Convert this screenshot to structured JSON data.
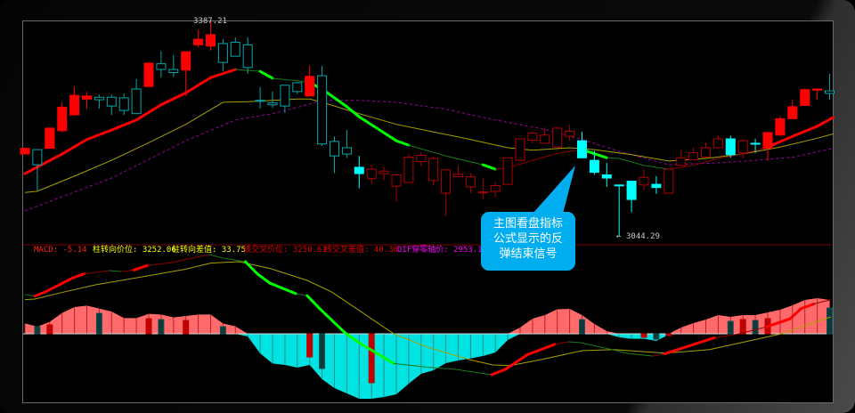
{
  "colors": {
    "up": "#ff0000",
    "up_hollow": "#b00000",
    "down": "#00a8a8",
    "down_filled": "#00ffff",
    "ma_short_up": "#ff0000",
    "ma_short_down": "#00ff00",
    "ma_mid": "#a8a000",
    "ma_long": "#a000a0",
    "hist_pos": "#ff6b6b",
    "hist_neg": "#00e3e3",
    "callout": "#00adef"
  },
  "callout": {
    "lines": [
      "主图看盘指标",
      "公式显示的反",
      "弹结束信号"
    ]
  },
  "macd_header": {
    "macd": "MACD: -5.14",
    "turn_price": "柱转向价位: 3252.06",
    "turn_diff": "柱转向差值: 33.75",
    "cross_price": "线交叉价位: 3250.61",
    "cross_diff": "线交叉差值: 40.30",
    "dif_zero": "DIF穿零轴价: 2953.15"
  },
  "chart_data": [
    {
      "type": "candlestick",
      "annotations": {
        "high_label": "3387.21",
        "low_label": "3044.29",
        "low_arrow": "←"
      },
      "candles_format": [
        "open",
        "high",
        "low",
        "close",
        "style"
      ],
      "candles": [
        [
          3174,
          3185,
          3174,
          3183,
          "up-filled"
        ],
        [
          3181,
          3181,
          3116,
          3157,
          "down-hollow"
        ],
        [
          3183,
          3215,
          3183,
          3215,
          "up-filled"
        ],
        [
          3211,
          3256,
          3208,
          3248,
          "up-filled"
        ],
        [
          3236,
          3281,
          3236,
          3267,
          "up-filled"
        ],
        [
          3261,
          3273,
          3246,
          3266,
          "up-filled"
        ],
        [
          3264,
          3268,
          3246,
          3260,
          "down-hollow"
        ],
        [
          3264,
          3268,
          3236,
          3250,
          "down-hollow"
        ],
        [
          3263,
          3270,
          3236,
          3243,
          "down-hollow"
        ],
        [
          3277,
          3293,
          3238,
          3238,
          "down-hollow"
        ],
        [
          3281,
          3318,
          3281,
          3318,
          "up-filled"
        ],
        [
          3317,
          3337,
          3295,
          3308,
          "down-hollow"
        ],
        [
          3308,
          3331,
          3296,
          3303,
          "down-hollow"
        ],
        [
          3307,
          3336,
          3266,
          3336,
          "up-filled"
        ],
        [
          3347,
          3371,
          3343,
          3356,
          "up-filled"
        ],
        [
          3345,
          3387.21,
          3338,
          3363,
          "up-filled"
        ],
        [
          3349,
          3356,
          3305,
          3319,
          "down-hollow"
        ],
        [
          3351,
          3359,
          3329,
          3329,
          "down-hollow"
        ],
        [
          3347,
          3359,
          3301,
          3311,
          "down-hollow"
        ],
        [
          3259,
          3280,
          3246,
          3259,
          "down-hollow"
        ],
        [
          3255,
          3273,
          3247,
          3252,
          "down-hollow"
        ],
        [
          3283,
          3283,
          3239,
          3250,
          "down-hollow"
        ],
        [
          3287,
          3287,
          3269,
          3273,
          "down-hollow"
        ],
        [
          3266,
          3314,
          3266,
          3297,
          "up-filled"
        ],
        [
          3298,
          3314,
          3187,
          3190,
          "down-hollow"
        ],
        [
          3194,
          3202,
          3144,
          3171,
          "down-hollow"
        ],
        [
          3184,
          3212,
          3168,
          3174,
          "down-hollow"
        ],
        [
          3153,
          3171,
          3120,
          3143,
          "down-filled"
        ],
        [
          3135,
          3157,
          3127,
          3150,
          "up-hollow"
        ],
        [
          3143,
          3153,
          3132,
          3147,
          "up-hollow"
        ],
        [
          3123,
          3141,
          3099,
          3141,
          "up-hollow"
        ],
        [
          3129,
          3174,
          3129,
          3169,
          "up-hollow"
        ],
        [
          3162,
          3177,
          3155,
          3172,
          "up-hollow"
        ],
        [
          3132,
          3170,
          3124,
          3167,
          "up-hollow"
        ],
        [
          3112,
          3149,
          3076,
          3149,
          "up-hollow"
        ],
        [
          3138,
          3156,
          3137,
          3142,
          "up-hollow"
        ],
        [
          3122,
          3144,
          3112,
          3138,
          "up-hollow"
        ],
        [
          3114,
          3135,
          3102,
          3114,
          "up-hollow"
        ],
        [
          3115,
          3130,
          3105,
          3124,
          "up-hollow"
        ],
        [
          3126,
          3168,
          3126,
          3168,
          "up-hollow"
        ],
        [
          3164,
          3198,
          3164,
          3198,
          "up-hollow"
        ],
        [
          3196,
          3210,
          3191,
          3207,
          "up-hollow"
        ],
        [
          3191,
          3216,
          3191,
          3204,
          "up-hollow"
        ],
        [
          3185,
          3217,
          3185,
          3215,
          "up-hollow"
        ],
        [
          3202,
          3220,
          3195,
          3210,
          "up-hollow"
        ],
        [
          3195,
          3209,
          3168,
          3168,
          "down-filled"
        ],
        [
          3164,
          3179,
          3141,
          3145,
          "down-filled"
        ],
        [
          3141,
          3160,
          3122,
          3136,
          "down-filled"
        ],
        [
          3125,
          3125,
          3044.29,
          3125,
          "down-filled"
        ],
        [
          3131,
          3131,
          3082,
          3102,
          "down-filled"
        ],
        [
          3125,
          3150,
          3117,
          3137,
          "up-hollow"
        ],
        [
          3126,
          3139,
          3111,
          3121,
          "down-filled"
        ],
        [
          3112,
          3150,
          3112,
          3150,
          "up-hollow"
        ],
        [
          3156,
          3180,
          3156,
          3168,
          "up-hollow"
        ],
        [
          3165,
          3184,
          3165,
          3176,
          "up-hollow"
        ],
        [
          3169,
          3193,
          3169,
          3184,
          "up-hollow"
        ],
        [
          3184,
          3203,
          3184,
          3198,
          "up-hollow"
        ],
        [
          3198,
          3203,
          3168,
          3173,
          "down-filled"
        ],
        [
          3176,
          3197,
          3167,
          3195,
          "up-hollow"
        ],
        [
          3191,
          3198,
          3176,
          3191,
          "down-filled"
        ],
        [
          3183,
          3208,
          3163,
          3208,
          "up-filled"
        ],
        [
          3204,
          3234,
          3204,
          3230,
          "up-filled"
        ],
        [
          3230,
          3260,
          3230,
          3249,
          "up-filled"
        ],
        [
          3251,
          3278,
          3251,
          3276,
          "up-filled"
        ],
        [
          3275,
          3277,
          3260,
          3277,
          "up-filled"
        ],
        [
          3274,
          3301,
          3260,
          3270,
          "down-hollow"
        ]
      ],
      "moving_averages": {
        "short": [
          [
            0,
            3143
          ],
          [
            3,
            3174
          ],
          [
            5,
            3197
          ],
          [
            7,
            3212
          ],
          [
            9,
            3228
          ],
          [
            11,
            3252
          ],
          [
            13,
            3271
          ],
          [
            15,
            3295
          ],
          [
            17,
            3308
          ],
          [
            19,
            3305
          ],
          [
            20,
            3294
          ],
          [
            22,
            3290
          ],
          [
            23,
            3287
          ],
          [
            24,
            3277
          ],
          [
            26,
            3249
          ],
          [
            27,
            3233
          ],
          [
            30,
            3195
          ],
          [
            31,
            3188
          ],
          [
            34,
            3171
          ],
          [
            37,
            3157
          ],
          [
            38,
            3150
          ],
          [
            39,
            3152
          ],
          [
            41,
            3164
          ],
          [
            43,
            3175
          ],
          [
            45,
            3181
          ],
          [
            47,
            3168
          ],
          [
            48,
            3167
          ],
          [
            50,
            3156
          ],
          [
            52,
            3150
          ],
          [
            54,
            3156
          ],
          [
            56,
            3167
          ],
          [
            58,
            3174
          ],
          [
            60,
            3185
          ],
          [
            62,
            3202
          ],
          [
            64,
            3218
          ],
          [
            65.3,
            3232
          ]
        ],
        "mid": [
          [
            0,
            3113
          ],
          [
            1,
            3115
          ],
          [
            4,
            3139
          ],
          [
            7,
            3164
          ],
          [
            10,
            3192
          ],
          [
            13,
            3221
          ],
          [
            16,
            3256
          ],
          [
            18,
            3257
          ],
          [
            20,
            3259
          ],
          [
            22,
            3261
          ],
          [
            23,
            3261
          ],
          [
            24,
            3256
          ],
          [
            27,
            3238
          ],
          [
            30,
            3221
          ],
          [
            33,
            3209
          ],
          [
            36,
            3197
          ],
          [
            39,
            3184
          ],
          [
            41,
            3180
          ],
          [
            44,
            3184
          ],
          [
            46,
            3181
          ],
          [
            49,
            3173
          ],
          [
            52,
            3163
          ],
          [
            55,
            3167
          ],
          [
            58,
            3174
          ],
          [
            61,
            3185
          ],
          [
            64,
            3199
          ],
          [
            65.3,
            3206
          ]
        ],
        "long": [
          [
            0,
            3084
          ],
          [
            7,
            3136
          ],
          [
            13,
            3195
          ],
          [
            17,
            3228
          ],
          [
            20,
            3238
          ],
          [
            23,
            3253
          ],
          [
            24,
            3259
          ],
          [
            27,
            3259
          ],
          [
            30,
            3256
          ],
          [
            34,
            3245
          ],
          [
            38,
            3228
          ],
          [
            42,
            3213
          ],
          [
            45,
            3197
          ],
          [
            48,
            3178
          ],
          [
            52,
            3157
          ],
          [
            56,
            3160
          ],
          [
            59,
            3164
          ],
          [
            62,
            3169
          ],
          [
            65.3,
            3183
          ]
        ]
      }
    },
    {
      "type": "macd",
      "histogram": [
        5.8,
        4,
        6.7,
        11.7,
        15,
        15.8,
        14.2,
        12.5,
        8.8,
        8.8,
        11.2,
        10.8,
        9.2,
        10,
        10.8,
        10.8,
        5.8,
        4.2,
        -1.5,
        -11,
        -16.7,
        -17.5,
        -19,
        -17.5,
        -25.5,
        -30.5,
        -33.5,
        -36.5,
        -36.5,
        -35.5,
        -34,
        -28,
        -22.5,
        -20.5,
        -16.5,
        -15,
        -13.8,
        -12.5,
        -10.5,
        -3.5,
        3.5,
        8.5,
        10.5,
        13.8,
        14,
        10.5,
        5.5,
        1.5,
        -2,
        -2.8,
        -2.8,
        -4,
        -0.5,
        3.5,
        6,
        8,
        10.5,
        9.5,
        10.5,
        10.5,
        12,
        13.5,
        16,
        19,
        20,
        19
      ],
      "signals": [
        [
          1,
          4,
          "down"
        ],
        [
          2,
          5,
          "up"
        ],
        [
          6,
          11.5,
          "down"
        ],
        [
          10,
          8.5,
          "up"
        ],
        [
          11,
          8,
          "down"
        ],
        [
          13,
          7.5,
          "up"
        ],
        [
          16,
          4,
          "down"
        ],
        [
          23,
          -13,
          "up"
        ],
        [
          24,
          -19.5,
          "down"
        ],
        [
          28,
          -27.5,
          "up"
        ],
        [
          45,
          8,
          "down"
        ],
        [
          50,
          -2,
          "up"
        ],
        [
          51,
          -3,
          "down"
        ],
        [
          52,
          -1,
          "up"
        ],
        [
          57,
          7,
          "down"
        ],
        [
          58,
          8,
          "up"
        ],
        [
          59,
          7.5,
          "down"
        ],
        [
          60,
          8.5,
          "up"
        ],
        [
          65,
          14.5,
          "down"
        ]
      ],
      "dif": [
        [
          0,
          22
        ],
        [
          0.8,
          21.2
        ],
        [
          1.7,
          23.7
        ],
        [
          3.9,
          31.5
        ],
        [
          4.8,
          33.7
        ],
        [
          6.8,
          35.5
        ],
        [
          7.8,
          35
        ],
        [
          8.8,
          35.8
        ],
        [
          9.9,
          38.4
        ],
        [
          11.9,
          40
        ],
        [
          12.9,
          41.7
        ],
        [
          14.9,
          44.5
        ],
        [
          16,
          42.5
        ],
        [
          17.8,
          40.5
        ],
        [
          18.8,
          33.5
        ],
        [
          19.8,
          28.4
        ],
        [
          21.9,
          22.5
        ],
        [
          22.8,
          21.4
        ],
        [
          23.8,
          14.2
        ],
        [
          25.8,
          0.9
        ],
        [
          26.8,
          -4.2
        ],
        [
          29.8,
          -16.7
        ],
        [
          32.7,
          -18.9
        ],
        [
          34.8,
          -20
        ],
        [
          37.7,
          -23
        ],
        [
          38.8,
          -20
        ],
        [
          40.6,
          -11.7
        ],
        [
          42.8,
          -5.9
        ],
        [
          43.9,
          -4.5
        ],
        [
          44.9,
          -5
        ],
        [
          47.6,
          -9.2
        ],
        [
          48.8,
          -11.2
        ],
        [
          50.7,
          -12.5
        ],
        [
          51.7,
          -11.2
        ],
        [
          55.7,
          -2.2
        ],
        [
          57.7,
          0
        ],
        [
          59.9,
          3.9
        ],
        [
          61.8,
          8.4
        ],
        [
          62.7,
          14.2
        ],
        [
          63.7,
          16.7
        ],
        [
          65.1,
          19.2
        ]
      ],
      "dea": [
        [
          0,
          19.2
        ],
        [
          0.8,
          19.5
        ],
        [
          2.8,
          22.9
        ],
        [
          5.7,
          27.5
        ],
        [
          8.8,
          31.2
        ],
        [
          12.9,
          36.2
        ],
        [
          15,
          39.7
        ],
        [
          17.3,
          40.5
        ],
        [
          19.8,
          36.7
        ],
        [
          22.8,
          30
        ],
        [
          24.8,
          23.4
        ],
        [
          29.8,
          0
        ],
        [
          32.5,
          -7.5
        ],
        [
          35.9,
          -14.5
        ],
        [
          37.8,
          -17.5
        ],
        [
          39.2,
          -17.9
        ],
        [
          41.7,
          -14.5
        ],
        [
          45,
          -9.5
        ],
        [
          47.6,
          -8.9
        ],
        [
          51.7,
          -10.9
        ],
        [
          55.3,
          -8.9
        ],
        [
          58.9,
          -3.4
        ],
        [
          61.1,
          0
        ],
        [
          63.2,
          5
        ],
        [
          65.1,
          9.5
        ]
      ]
    }
  ]
}
